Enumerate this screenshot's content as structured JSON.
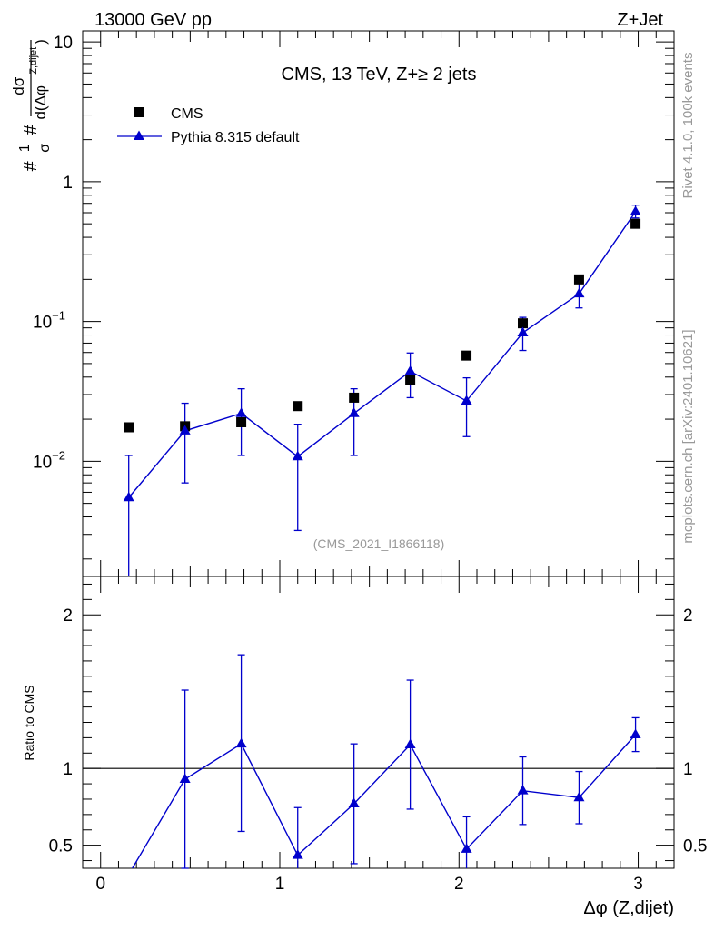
{
  "header": {
    "left": "13000 GeV pp",
    "right": "Z+Jet"
  },
  "side_labels": {
    "rivet": "Rivet 4.1.0,  100k events",
    "mcplots": "mcplots.cern.ch [arXiv:2401.10621]"
  },
  "colors": {
    "data": "#000000",
    "mc": "#0000cc",
    "reference_line": "#000000",
    "watermark": "#999999"
  },
  "chart_data": [
    {
      "type": "scatter",
      "panel": "main",
      "title": "CMS, 13 TeV, Z+≥ 2 jets",
      "watermark": "(CMS_2021_I1866118)",
      "ylabel": "#¹⁄σ # dσ / d(Δφ Z,dijet)",
      "ylabel_parts": {
        "hash1": "#",
        "one": "1",
        "sigma_den": "σ",
        "hash2": "#",
        "num": "dσ",
        "den": "d(Δφ",
        "sup": "Z,dijet",
        "close": ")"
      },
      "yscale": "log",
      "ylim": [
        0.0015,
        12
      ],
      "xlim": [
        -0.1,
        3.2
      ],
      "yticks": [
        {
          "value": 0.01,
          "base": "10",
          "exp": "−2"
        },
        {
          "value": 0.1,
          "base": "10",
          "exp": "−1"
        },
        {
          "value": 1,
          "base": "1",
          "exp": ""
        },
        {
          "value": 10,
          "base": "10",
          "exp": ""
        }
      ],
      "legend_position": "top-left",
      "series": [
        {
          "name": "CMS",
          "marker": "square",
          "x": [
            0.157,
            0.471,
            0.785,
            1.1,
            1.414,
            1.728,
            2.042,
            2.356,
            2.67,
            2.985
          ],
          "y": [
            0.0175,
            0.0178,
            0.019,
            0.0248,
            0.0285,
            0.038,
            0.057,
            0.097,
            0.2,
            0.5
          ]
        },
        {
          "name": "Pythia 8.315 default",
          "marker": "triangle",
          "x": [
            0.157,
            0.471,
            0.785,
            1.1,
            1.414,
            1.728,
            2.042,
            2.356,
            2.67,
            2.985
          ],
          "y": [
            0.0055,
            0.0165,
            0.022,
            0.0108,
            0.022,
            0.044,
            0.027,
            0.083,
            0.158,
            0.61
          ],
          "err_low": [
            0.0055,
            0.0095,
            0.011,
            0.0076,
            0.011,
            0.0155,
            0.012,
            0.021,
            0.033,
            0.06
          ],
          "err_high": [
            0.0055,
            0.0095,
            0.011,
            0.0076,
            0.011,
            0.0155,
            0.0125,
            0.024,
            0.033,
            0.07
          ]
        }
      ]
    },
    {
      "type": "line",
      "panel": "ratio",
      "ylabel": "Ratio to CMS",
      "xlabel": "Δφ (Z,dijet)",
      "ylim": [
        0.35,
        2.25
      ],
      "xlim": [
        -0.1,
        3.2
      ],
      "xticks": [
        0,
        1,
        2,
        3
      ],
      "yticks": [
        0.5,
        1,
        2
      ],
      "reference": 1,
      "series": [
        {
          "name": "Pythia 8.315 default",
          "x": [
            0.157,
            0.471,
            0.785,
            1.1,
            1.414,
            1.728,
            2.042,
            2.356,
            2.67,
            2.985
          ],
          "y": [
            0.31,
            0.93,
            1.16,
            0.435,
            0.77,
            1.155,
            0.475,
            0.855,
            0.81,
            1.22
          ],
          "err_low": [
            0.31,
            0.58,
            0.57,
            0.31,
            0.39,
            0.42,
            0.21,
            0.22,
            0.17,
            0.11
          ],
          "err_high": [
            0.31,
            0.58,
            0.58,
            0.31,
            0.39,
            0.42,
            0.21,
            0.22,
            0.17,
            0.11
          ]
        }
      ]
    }
  ]
}
